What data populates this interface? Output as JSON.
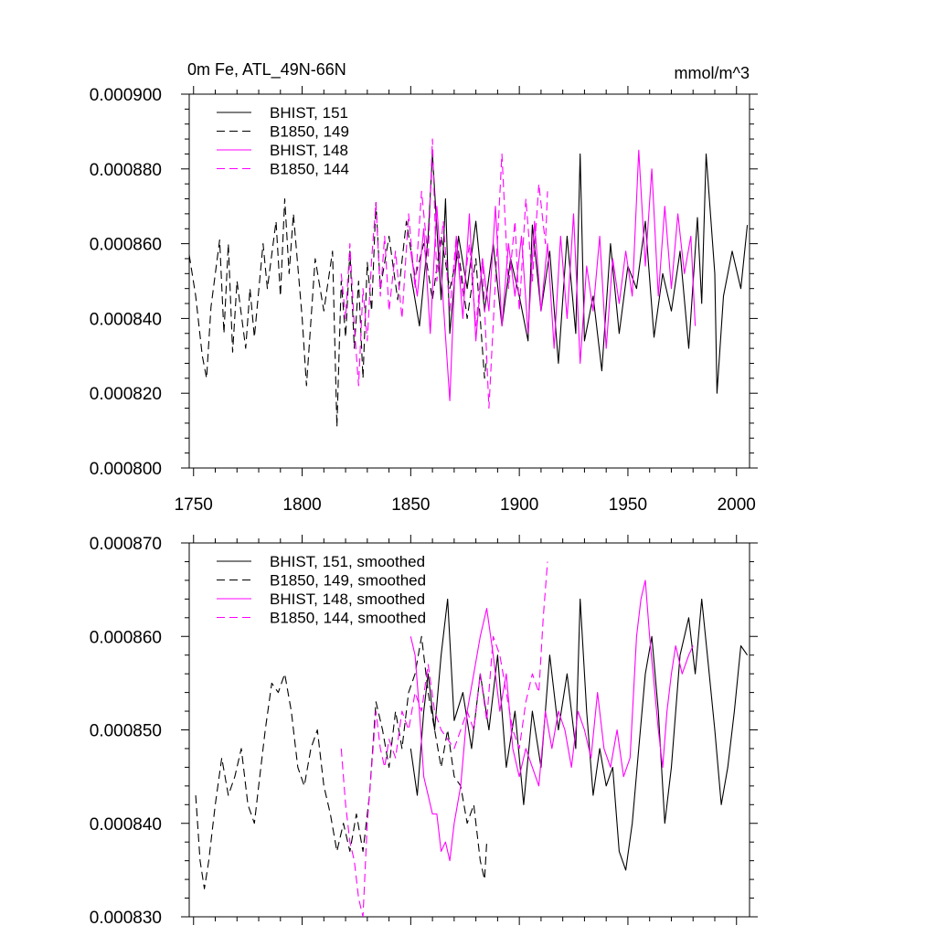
{
  "figure": {
    "title": "0m Fe, ATL_49N-66N",
    "units": "mmol/m^3"
  },
  "colors": {
    "black": "#000000",
    "magenta": "#ff00ff"
  },
  "chart_data": [
    {
      "type": "line",
      "title": "0m Fe, ATL_49N-66N",
      "units": "mmol/m^3",
      "xlim": [
        1748,
        2006
      ],
      "ylim": [
        0.0008,
        0.0009
      ],
      "x_ticks": [
        "1750",
        "1800",
        "1850",
        "1900",
        "1950",
        "2000"
      ],
      "y_ticks": [
        "0.000800",
        "0.000820",
        "0.000840",
        "0.000860",
        "0.000880",
        "0.000900"
      ],
      "grid": false,
      "legend_position": "top-left",
      "series": [
        {
          "name": "BHIST, 151",
          "color": "#000000",
          "dash": "solid",
          "x": [
            1850,
            1854,
            1858,
            1860,
            1864,
            1866,
            1868,
            1872,
            1876,
            1880,
            1884,
            1888,
            1892,
            1896,
            1900,
            1904,
            1906,
            1910,
            1914,
            1918,
            1922,
            1926,
            1928,
            1930,
            1934,
            1938,
            1942,
            1946,
            1950,
            1954,
            1958,
            1962,
            1966,
            1970,
            1974,
            1978,
            1982,
            1984,
            1986,
            1990,
            1991,
            1994,
            1998,
            2002,
            2005
          ],
          "y": [
            0.000852,
            0.000838,
            0.000862,
            0.000884,
            0.000845,
            0.000872,
            0.000836,
            0.000862,
            0.000848,
            0.000866,
            0.000842,
            0.00086,
            0.000838,
            0.000856,
            0.000846,
            0.000834,
            0.000865,
            0.000842,
            0.000858,
            0.000828,
            0.000862,
            0.000836,
            0.000884,
            0.000834,
            0.000846,
            0.000826,
            0.00086,
            0.000836,
            0.000854,
            0.000848,
            0.000866,
            0.000835,
            0.000852,
            0.000842,
            0.000858,
            0.000832,
            0.000867,
            0.000844,
            0.000884,
            0.000852,
            0.00082,
            0.000846,
            0.000858,
            0.000848,
            0.000865
          ]
        },
        {
          "name": "B1850, 149",
          "color": "#000000",
          "dash": "dashed",
          "x": [
            1748,
            1751,
            1754,
            1756,
            1758,
            1762,
            1764,
            1766,
            1768,
            1770,
            1774,
            1776,
            1778,
            1782,
            1784,
            1788,
            1790,
            1792,
            1794,
            1796,
            1800,
            1802,
            1806,
            1810,
            1814,
            1816,
            1818,
            1820,
            1822,
            1824,
            1826,
            1828,
            1830,
            1832,
            1834,
            1836,
            1840,
            1844,
            1848,
            1852,
            1856,
            1860,
            1864,
            1868,
            1872,
            1876,
            1880,
            1884,
            1885
          ],
          "y": [
            0.000857,
            0.000846,
            0.00083,
            0.000824,
            0.000843,
            0.000861,
            0.000836,
            0.00086,
            0.000831,
            0.00085,
            0.000832,
            0.000848,
            0.000835,
            0.00086,
            0.000848,
            0.000866,
            0.000846,
            0.000872,
            0.000852,
            0.000868,
            0.00084,
            0.000822,
            0.000856,
            0.000842,
            0.000858,
            0.000811,
            0.00085,
            0.000835,
            0.000858,
            0.000832,
            0.00085,
            0.000824,
            0.000855,
            0.000842,
            0.000871,
            0.000848,
            0.000862,
            0.000845,
            0.000866,
            0.000851,
            0.00086,
            0.000845,
            0.000862,
            0.000848,
            0.000858,
            0.00084,
            0.000856,
            0.000824,
            0.00083
          ]
        },
        {
          "name": "BHIST, 148",
          "color": "#ff00ff",
          "dash": "solid",
          "x": [
            1850,
            1853,
            1856,
            1859,
            1862,
            1865,
            1868,
            1871,
            1874,
            1877,
            1880,
            1883,
            1886,
            1889,
            1892,
            1895,
            1898,
            1901,
            1904,
            1907,
            1910,
            1913,
            1916,
            1919,
            1922,
            1925,
            1928,
            1931,
            1934,
            1937,
            1940,
            1943,
            1946,
            1949,
            1952,
            1955,
            1958,
            1961,
            1964,
            1967,
            1970,
            1973,
            1976,
            1979,
            1981
          ],
          "y": [
            0.000858,
            0.000846,
            0.000864,
            0.000836,
            0.00087,
            0.000844,
            0.000818,
            0.000862,
            0.00084,
            0.000868,
            0.000834,
            0.000856,
            0.000842,
            0.00087,
            0.000838,
            0.00086,
            0.000846,
            0.000862,
            0.000836,
            0.000866,
            0.000842,
            0.00086,
            0.000832,
            0.000862,
            0.00084,
            0.000868,
            0.000828,
            0.000854,
            0.000842,
            0.000862,
            0.000832,
            0.000856,
            0.000844,
            0.000858,
            0.000846,
            0.000885,
            0.000854,
            0.00088,
            0.000846,
            0.00087,
            0.000848,
            0.000868,
            0.000852,
            0.000862,
            0.000838
          ]
        },
        {
          "name": "B1850, 144",
          "color": "#ff00ff",
          "dash": "dashed",
          "x": [
            1818,
            1820,
            1822,
            1824,
            1826,
            1828,
            1830,
            1832,
            1834,
            1836,
            1838,
            1840,
            1843,
            1846,
            1849,
            1852,
            1855,
            1858,
            1860,
            1862,
            1865,
            1868,
            1871,
            1874,
            1877,
            1880,
            1883,
            1886,
            1889,
            1892,
            1895,
            1898,
            1900,
            1903,
            1906,
            1909,
            1912,
            1913
          ],
          "y": [
            0.000852,
            0.00084,
            0.00086,
            0.000838,
            0.000822,
            0.000848,
            0.000834,
            0.000856,
            0.000871,
            0.000846,
            0.000862,
            0.000842,
            0.000858,
            0.00084,
            0.000868,
            0.000848,
            0.000874,
            0.000856,
            0.000888,
            0.00085,
            0.000866,
            0.000842,
            0.000862,
            0.000846,
            0.00086,
            0.000838,
            0.000856,
            0.000816,
            0.00085,
            0.000884,
            0.000848,
            0.000866,
            0.000842,
            0.000872,
            0.00085,
            0.000876,
            0.00086,
            0.000874
          ]
        }
      ]
    },
    {
      "type": "line",
      "xlim": [
        1748,
        2006
      ],
      "ylim": [
        0.00083,
        0.00087
      ],
      "y_ticks": [
        "0.000830",
        "0.000840",
        "0.000850",
        "0.000860",
        "0.000870"
      ],
      "grid": false,
      "legend_position": "top-left",
      "series": [
        {
          "name": "BHIST, 151, smoothed",
          "color": "#000000",
          "dash": "solid",
          "x": [
            1850,
            1853,
            1856,
            1858,
            1861,
            1864,
            1867,
            1870,
            1874,
            1878,
            1882,
            1886,
            1890,
            1894,
            1898,
            1902,
            1906,
            1910,
            1914,
            1918,
            1922,
            1926,
            1928,
            1931,
            1934,
            1937,
            1940,
            1943,
            1946,
            1949,
            1952,
            1955,
            1958,
            1961,
            1964,
            1967,
            1970,
            1974,
            1978,
            1981,
            1984,
            1987,
            1990,
            1993,
            1996,
            1999,
            2002,
            2005
          ],
          "y": [
            0.000848,
            0.000843,
            0.000852,
            0.000856,
            0.00085,
            0.000858,
            0.000864,
            0.000851,
            0.000854,
            0.000848,
            0.000856,
            0.00085,
            0.000858,
            0.000846,
            0.000852,
            0.000842,
            0.000852,
            0.000846,
            0.000858,
            0.00085,
            0.000856,
            0.000848,
            0.000864,
            0.000852,
            0.000843,
            0.000848,
            0.000844,
            0.000846,
            0.000837,
            0.000835,
            0.00084,
            0.000848,
            0.000856,
            0.00086,
            0.000852,
            0.00084,
            0.000846,
            0.000858,
            0.000862,
            0.000856,
            0.000864,
            0.000857,
            0.00085,
            0.000842,
            0.000846,
            0.000852,
            0.000859,
            0.000858
          ]
        },
        {
          "name": "B1850, 149, smoothed",
          "color": "#000000",
          "dash": "dashed",
          "x": [
            1751,
            1753,
            1755,
            1757,
            1760,
            1763,
            1766,
            1769,
            1772,
            1775,
            1778,
            1780,
            1783,
            1786,
            1789,
            1792,
            1795,
            1798,
            1801,
            1804,
            1807,
            1810,
            1813,
            1816,
            1819,
            1822,
            1825,
            1828,
            1831,
            1834,
            1837,
            1840,
            1843,
            1846,
            1849,
            1852,
            1855,
            1858,
            1861,
            1864,
            1867,
            1870,
            1873,
            1876,
            1879,
            1882,
            1884,
            1885
          ],
          "y": [
            0.000843,
            0.000836,
            0.000833,
            0.000836,
            0.000842,
            0.000847,
            0.000843,
            0.000845,
            0.000848,
            0.000842,
            0.00084,
            0.000844,
            0.00085,
            0.000855,
            0.000854,
            0.000856,
            0.000852,
            0.000846,
            0.000844,
            0.000848,
            0.00085,
            0.000844,
            0.000841,
            0.000837,
            0.00084,
            0.000837,
            0.000841,
            0.000837,
            0.000843,
            0.000853,
            0.00085,
            0.000846,
            0.000852,
            0.000848,
            0.000854,
            0.000856,
            0.00086,
            0.000854,
            0.00085,
            0.000846,
            0.00085,
            0.000845,
            0.000844,
            0.00084,
            0.000842,
            0.000836,
            0.000834,
            0.000838
          ]
        },
        {
          "name": "BHIST, 148, smoothed",
          "color": "#ff00ff",
          "dash": "solid",
          "x": [
            1850,
            1852,
            1854,
            1856,
            1858,
            1860,
            1862,
            1864,
            1866,
            1868,
            1870,
            1873,
            1876,
            1879,
            1882,
            1885,
            1888,
            1891,
            1894,
            1897,
            1900,
            1903,
            1906,
            1909,
            1912,
            1915,
            1918,
            1921,
            1924,
            1927,
            1930,
            1933,
            1936,
            1939,
            1942,
            1945,
            1948,
            1951,
            1954,
            1956,
            1958,
            1960,
            1962,
            1964,
            1966,
            1968,
            1970,
            1972,
            1975,
            1978,
            1980
          ],
          "y": [
            0.00086,
            0.000858,
            0.000852,
            0.000845,
            0.000843,
            0.000841,
            0.000841,
            0.000837,
            0.000838,
            0.000836,
            0.00084,
            0.000844,
            0.000852,
            0.000856,
            0.00086,
            0.000863,
            0.000858,
            0.000852,
            0.000856,
            0.000848,
            0.000845,
            0.000848,
            0.000846,
            0.000844,
            0.000852,
            0.000848,
            0.000852,
            0.00085,
            0.000846,
            0.000852,
            0.00085,
            0.000847,
            0.000854,
            0.000848,
            0.000846,
            0.00085,
            0.000845,
            0.000847,
            0.00086,
            0.000864,
            0.000866,
            0.00086,
            0.000855,
            0.00085,
            0.000846,
            0.000852,
            0.000856,
            0.000859,
            0.000856,
            0.000858,
            0.000859
          ]
        },
        {
          "name": "B1850, 144, smoothed",
          "color": "#ff00ff",
          "dash": "dashed",
          "x": [
            1818,
            1820,
            1822,
            1824,
            1826,
            1828,
            1830,
            1832,
            1834,
            1836,
            1838,
            1840,
            1843,
            1846,
            1849,
            1852,
            1855,
            1858,
            1861,
            1864,
            1867,
            1870,
            1873,
            1876,
            1879,
            1882,
            1885,
            1888,
            1891,
            1894,
            1897,
            1900,
            1903,
            1906,
            1909,
            1911,
            1913
          ],
          "y": [
            0.000848,
            0.000842,
            0.000838,
            0.000836,
            0.000832,
            0.00083,
            0.00084,
            0.000846,
            0.000852,
            0.000848,
            0.000846,
            0.000849,
            0.000847,
            0.000852,
            0.00085,
            0.000854,
            0.000852,
            0.000857,
            0.000852,
            0.00085,
            0.000849,
            0.000848,
            0.00085,
            0.000852,
            0.00085,
            0.000856,
            0.000851,
            0.00086,
            0.000858,
            0.000854,
            0.00085,
            0.000848,
            0.000853,
            0.000856,
            0.000854,
            0.000862,
            0.000868
          ]
        }
      ]
    }
  ]
}
